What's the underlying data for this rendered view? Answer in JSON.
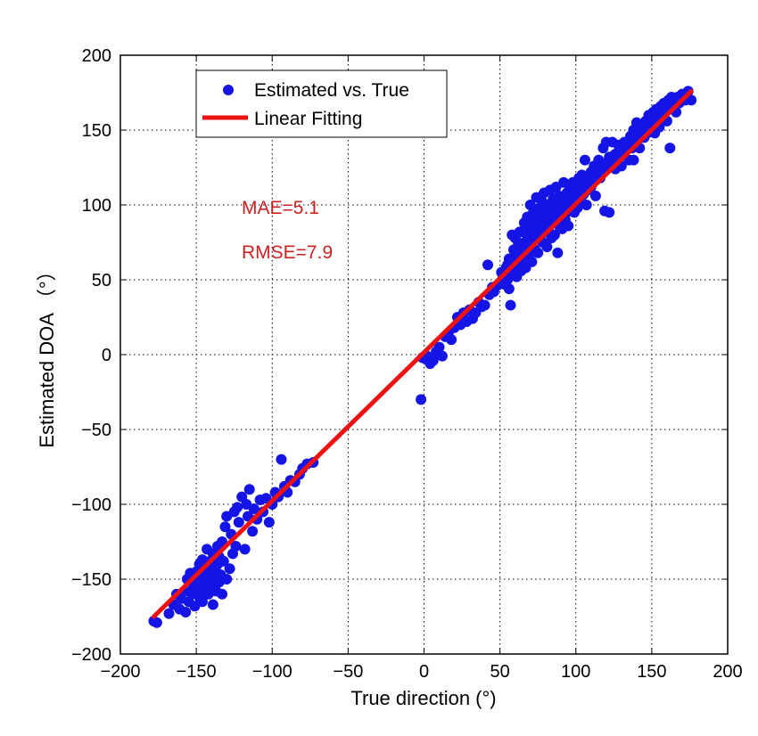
{
  "chart_data": {
    "type": "scatter",
    "xlabel": "True direction (°)",
    "ylabel": "Estimated DOA （°）",
    "xlim": [
      -200,
      200
    ],
    "ylim": [
      -200,
      200
    ],
    "xticks": [
      -200,
      -150,
      -100,
      -50,
      0,
      50,
      100,
      150,
      200
    ],
    "yticks": [
      -200,
      -150,
      -100,
      -50,
      0,
      50,
      100,
      150,
      200
    ],
    "xtick_labels": [
      "−200",
      "−150",
      "−100",
      "−50",
      "0",
      "50",
      "100",
      "150",
      "200"
    ],
    "ytick_labels": [
      "−200",
      "−150",
      "−100",
      "−50",
      "0",
      "50",
      "100",
      "150",
      "200"
    ],
    "grid": true,
    "legend_position": "top-left",
    "annotations": {
      "mae": "MAE=5.1",
      "rmse": "RMSE=7.9",
      "color": "#cc2222"
    },
    "series": [
      {
        "name": "Estimated vs. True",
        "kind": "scatter",
        "color": "#1414e6",
        "points": [
          [
            -178,
            -178
          ],
          [
            -176,
            -179
          ],
          [
            -168,
            -173
          ],
          [
            -165,
            -167
          ],
          [
            -163,
            -160
          ],
          [
            -161,
            -170
          ],
          [
            -160,
            -163
          ],
          [
            -158,
            -158
          ],
          [
            -157,
            -172
          ],
          [
            -156,
            -150
          ],
          [
            -155,
            -165
          ],
          [
            -154,
            -146
          ],
          [
            -153,
            -160
          ],
          [
            -152,
            -155
          ],
          [
            -151,
            -168
          ],
          [
            -150,
            -150
          ],
          [
            -150,
            -145
          ],
          [
            -149,
            -158
          ],
          [
            -148,
            -162
          ],
          [
            -148,
            -140
          ],
          [
            -147,
            -153
          ],
          [
            -146,
            -165
          ],
          [
            -146,
            -137
          ],
          [
            -145,
            -148
          ],
          [
            -145,
            -157
          ],
          [
            -144,
            -143
          ],
          [
            -143,
            -152
          ],
          [
            -143,
            -130
          ],
          [
            -142,
            -160
          ],
          [
            -142,
            -147
          ],
          [
            -141,
            -138
          ],
          [
            -140,
            -155
          ],
          [
            -140,
            -143
          ],
          [
            -139,
            -167
          ],
          [
            -139,
            -133
          ],
          [
            -138,
            -150
          ],
          [
            -137,
            -145
          ],
          [
            -137,
            -158
          ],
          [
            -136,
            -140
          ],
          [
            -136,
            -128
          ],
          [
            -135,
            -152
          ],
          [
            -135,
            -135
          ],
          [
            -134,
            -147
          ],
          [
            -133,
            -125
          ],
          [
            -133,
            -160
          ],
          [
            -132,
            -138
          ],
          [
            -131,
            -115
          ],
          [
            -130,
            -150
          ],
          [
            -130,
            -108
          ],
          [
            -128,
            -143
          ],
          [
            -127,
            -120
          ],
          [
            -126,
            -133
          ],
          [
            -125,
            -105
          ],
          [
            -124,
            -128
          ],
          [
            -123,
            -102
          ],
          [
            -122,
            -112
          ],
          [
            -120,
            -95
          ],
          [
            -118,
            -130
          ],
          [
            -117,
            -100
          ],
          [
            -116,
            -108
          ],
          [
            -115,
            -90
          ],
          [
            -113,
            -118
          ],
          [
            -112,
            -103
          ],
          [
            -110,
            -110
          ],
          [
            -108,
            -97
          ],
          [
            -106,
            -105
          ],
          [
            -104,
            -96
          ],
          [
            -102,
            -112
          ],
          [
            -100,
            -100
          ],
          [
            -98,
            -92
          ],
          [
            -96,
            -95
          ],
          [
            -94,
            -70
          ],
          [
            -92,
            -88
          ],
          [
            -90,
            -92
          ],
          [
            -88,
            -84
          ],
          [
            -85,
            -85
          ],
          [
            -82,
            -80
          ],
          [
            -80,
            -76
          ],
          [
            -77,
            -73
          ],
          [
            -73,
            -72
          ],
          [
            -2,
            -30
          ],
          [
            -1,
            -2
          ],
          [
            1,
            -3
          ],
          [
            2,
            -1
          ],
          [
            4,
            -6
          ],
          [
            6,
            -4
          ],
          [
            8,
            2
          ],
          [
            10,
            5
          ],
          [
            12,
            -1
          ],
          [
            14,
            12
          ],
          [
            16,
            14
          ],
          [
            18,
            10
          ],
          [
            20,
            18
          ],
          [
            22,
            25
          ],
          [
            24,
            20
          ],
          [
            26,
            28
          ],
          [
            28,
            22
          ],
          [
            30,
            30
          ],
          [
            32,
            24
          ],
          [
            34,
            28
          ],
          [
            36,
            35
          ],
          [
            38,
            32
          ],
          [
            40,
            33
          ],
          [
            42,
            60
          ],
          [
            43,
            40
          ],
          [
            45,
            45
          ],
          [
            46,
            42
          ],
          [
            48,
            46
          ],
          [
            50,
            48
          ],
          [
            51,
            55
          ],
          [
            52,
            52
          ],
          [
            53,
            47
          ],
          [
            54,
            58
          ],
          [
            55,
            60
          ],
          [
            55,
            50
          ],
          [
            56,
            64
          ],
          [
            56,
            44
          ],
          [
            57,
            56
          ],
          [
            57,
            33
          ],
          [
            58,
            62
          ],
          [
            58,
            80
          ],
          [
            59,
            70
          ],
          [
            59,
            55
          ],
          [
            60,
            58
          ],
          [
            60,
            78
          ],
          [
            61,
            68
          ],
          [
            61,
            52
          ],
          [
            62,
            75
          ],
          [
            62,
            60
          ],
          [
            63,
            65
          ],
          [
            63,
            82
          ],
          [
            64,
            56
          ],
          [
            64,
            72
          ],
          [
            65,
            70
          ],
          [
            65,
            62
          ],
          [
            66,
            74
          ],
          [
            66,
            88
          ],
          [
            67,
            64
          ],
          [
            67,
            58
          ],
          [
            68,
            78
          ],
          [
            68,
            92
          ],
          [
            69,
            66
          ],
          [
            69,
            84
          ],
          [
            70,
            72
          ],
          [
            70,
            100
          ],
          [
            71,
            62
          ],
          [
            71,
            88
          ],
          [
            72,
            76
          ],
          [
            72,
            95
          ],
          [
            73,
            82
          ],
          [
            73,
            70
          ],
          [
            74,
            90
          ],
          [
            74,
            105
          ],
          [
            75,
            78
          ],
          [
            75,
            68
          ],
          [
            76,
            86
          ],
          [
            76,
            98
          ],
          [
            77,
            80
          ],
          [
            77,
            93
          ],
          [
            78,
            102
          ],
          [
            78,
            75
          ],
          [
            79,
            88
          ],
          [
            79,
            108
          ],
          [
            80,
            82
          ],
          [
            80,
            96
          ],
          [
            81,
            90
          ],
          [
            81,
            72
          ],
          [
            82,
            100
          ],
          [
            82,
            85
          ],
          [
            83,
            92
          ],
          [
            83,
            110
          ],
          [
            84,
            78
          ],
          [
            84,
            95
          ],
          [
            85,
            88
          ],
          [
            85,
            104
          ],
          [
            86,
            92
          ],
          [
            86,
            80
          ],
          [
            87,
            100
          ],
          [
            87,
            112
          ],
          [
            88,
            94
          ],
          [
            88,
            68
          ],
          [
            89,
            86
          ],
          [
            89,
            106
          ],
          [
            90,
            98
          ],
          [
            90,
            90
          ],
          [
            91,
            104
          ],
          [
            91,
            84
          ],
          [
            92,
            96
          ],
          [
            92,
            115
          ],
          [
            93,
            100
          ],
          [
            93,
            90
          ],
          [
            94,
            108
          ],
          [
            94,
            95
          ],
          [
            95,
            102
          ],
          [
            95,
            86
          ],
          [
            96,
            110
          ],
          [
            96,
            98
          ],
          [
            97,
            104
          ],
          [
            98,
            100
          ],
          [
            98,
            115
          ],
          [
            99,
            95
          ],
          [
            100,
            112
          ],
          [
            100,
            106
          ],
          [
            101,
            98
          ],
          [
            102,
            118
          ],
          [
            102,
            110
          ],
          [
            103,
            104
          ],
          [
            104,
            120
          ],
          [
            104,
            112
          ],
          [
            105,
            107
          ],
          [
            106,
            130
          ],
          [
            106,
            116
          ],
          [
            107,
            100
          ],
          [
            108,
            118
          ],
          [
            108,
            110
          ],
          [
            110,
            122
          ],
          [
            110,
            112
          ],
          [
            112,
            126
          ],
          [
            112,
            118
          ],
          [
            113,
            106
          ],
          [
            114,
            122
          ],
          [
            115,
            130
          ],
          [
            116,
            118
          ],
          [
            117,
            128
          ],
          [
            118,
            124
          ],
          [
            118,
            138
          ],
          [
            119,
            96
          ],
          [
            120,
            126
          ],
          [
            120,
            142
          ],
          [
            122,
            132
          ],
          [
            122,
            95
          ],
          [
            124,
            128
          ],
          [
            124,
            142
          ],
          [
            126,
            134
          ],
          [
            126,
            124
          ],
          [
            128,
            140
          ],
          [
            128,
            132
          ],
          [
            130,
            136
          ],
          [
            130,
            126
          ],
          [
            132,
            142
          ],
          [
            132,
            134
          ],
          [
            134,
            140
          ],
          [
            135,
            130
          ],
          [
            136,
            146
          ],
          [
            137,
            138
          ],
          [
            138,
            150
          ],
          [
            138,
            130
          ],
          [
            140,
            142
          ],
          [
            140,
            155
          ],
          [
            142,
            148
          ],
          [
            142,
            138
          ],
          [
            144,
            152
          ],
          [
            145,
            145
          ],
          [
            146,
            156
          ],
          [
            147,
            148
          ],
          [
            148,
            160
          ],
          [
            149,
            150
          ],
          [
            150,
            155
          ],
          [
            151,
            162
          ],
          [
            152,
            148
          ],
          [
            153,
            164
          ],
          [
            154,
            158
          ],
          [
            155,
            152
          ],
          [
            156,
            166
          ],
          [
            157,
            160
          ],
          [
            158,
            168
          ],
          [
            159,
            162
          ],
          [
            160,
            156
          ],
          [
            161,
            170
          ],
          [
            162,
            164
          ],
          [
            162,
            138
          ],
          [
            163,
            172
          ],
          [
            164,
            166
          ],
          [
            165,
            170
          ],
          [
            166,
            162
          ],
          [
            167,
            172
          ],
          [
            168,
            168
          ],
          [
            170,
            174
          ],
          [
            172,
            170
          ],
          [
            174,
            176
          ],
          [
            176,
            170
          ]
        ]
      },
      {
        "name": "Linear Fitting",
        "kind": "line",
        "color": "#ee1111",
        "x": [
          -178,
          176
        ],
        "y": [
          -175,
          176
        ]
      }
    ]
  }
}
